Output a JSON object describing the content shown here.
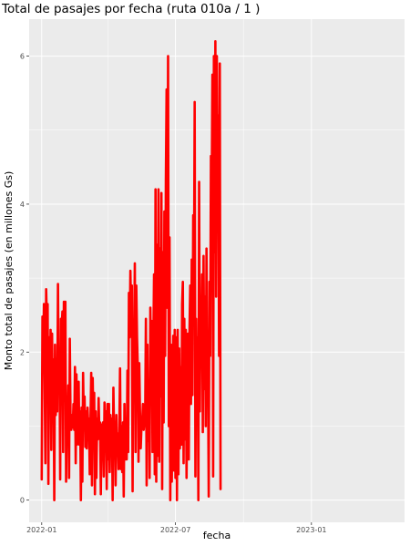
{
  "chart_data": {
    "type": "line",
    "title": "Total de pasajes por fecha (ruta 010a / 1 )",
    "xlabel": "fecha",
    "ylabel": "Monto total de pasajes (en millones Gs)",
    "x_range": [
      "2021-12-15",
      "2023-05-07"
    ],
    "ylim": [
      -0.3,
      6.5
    ],
    "x_ticks": [
      {
        "date": "2022-01-01",
        "label": "2022-01"
      },
      {
        "date": "2022-07-01",
        "label": "2022-07"
      },
      {
        "date": "2023-01-01",
        "label": "2023-01"
      }
    ],
    "y_ticks": [
      0,
      2,
      4,
      6
    ],
    "y_tick_labels": [
      "0",
      "2",
      "4",
      "6"
    ],
    "grid": true,
    "series": [
      {
        "color": "#ff0000",
        "points": [
          [
            "2022-01-01",
            0.28
          ],
          [
            "2022-01-02",
            2.48
          ],
          [
            "2022-01-03",
            1.9
          ],
          [
            "2022-01-04",
            2.65
          ],
          [
            "2022-01-06",
            0.5
          ],
          [
            "2022-01-07",
            2.85
          ],
          [
            "2022-01-08",
            2.4
          ],
          [
            "2022-01-09",
            2.65
          ],
          [
            "2022-01-10",
            0.22
          ],
          [
            "2022-01-11",
            2.2
          ],
          [
            "2022-01-12",
            1.2
          ],
          [
            "2022-01-13",
            2.3
          ],
          [
            "2022-01-14",
            0.68
          ],
          [
            "2022-01-15",
            2.25
          ],
          [
            "2022-01-16",
            1.3
          ],
          [
            "2022-01-17",
            1.9
          ],
          [
            "2022-01-18",
            0.0
          ],
          [
            "2022-01-19",
            2.1
          ],
          [
            "2022-01-20",
            1.15
          ],
          [
            "2022-01-21",
            1.9
          ],
          [
            "2022-01-22",
            1.2
          ],
          [
            "2022-01-23",
            2.92
          ],
          [
            "2022-01-24",
            1.5
          ],
          [
            "2022-01-25",
            2.05
          ],
          [
            "2022-01-26",
            0.28
          ],
          [
            "2022-01-27",
            2.45
          ],
          [
            "2022-01-28",
            2.3
          ],
          [
            "2022-01-29",
            2.55
          ],
          [
            "2022-01-30",
            0.65
          ],
          [
            "2022-01-31",
            2.68
          ],
          [
            "2022-02-01",
            2.2
          ],
          [
            "2022-02-02",
            2.68
          ],
          [
            "2022-02-03",
            0.25
          ],
          [
            "2022-02-04",
            1.35
          ],
          [
            "2022-02-05",
            1.0
          ],
          [
            "2022-02-06",
            1.55
          ],
          [
            "2022-02-07",
            0.3
          ],
          [
            "2022-02-08",
            2.18
          ],
          [
            "2022-02-09",
            1.1
          ],
          [
            "2022-02-10",
            0.95
          ],
          [
            "2022-02-11",
            1.15
          ],
          [
            "2022-02-12",
            0.98
          ],
          [
            "2022-02-13",
            1.3
          ],
          [
            "2022-02-14",
            0.95
          ],
          [
            "2022-02-15",
            1.8
          ],
          [
            "2022-02-16",
            0.5
          ],
          [
            "2022-02-17",
            1.7
          ],
          [
            "2022-02-18",
            0.75
          ],
          [
            "2022-02-19",
            1.05
          ],
          [
            "2022-02-20",
            1.6
          ],
          [
            "2022-02-21",
            0.75
          ],
          [
            "2022-02-22",
            1.2
          ],
          [
            "2022-02-23",
            0.0
          ],
          [
            "2022-02-24",
            1.25
          ],
          [
            "2022-02-25",
            0.25
          ],
          [
            "2022-02-26",
            1.72
          ],
          [
            "2022-02-27",
            1.0
          ],
          [
            "2022-02-28",
            1.4
          ],
          [
            "2022-03-01",
            0.72
          ],
          [
            "2022-03-02",
            1.2
          ],
          [
            "2022-03-03",
            0.7
          ],
          [
            "2022-03-04",
            1.25
          ],
          [
            "2022-03-05",
            1.0
          ],
          [
            "2022-03-06",
            1.1
          ],
          [
            "2022-03-07",
            0.35
          ],
          [
            "2022-03-08",
            1.05
          ],
          [
            "2022-03-09",
            1.72
          ],
          [
            "2022-03-10",
            0.2
          ],
          [
            "2022-03-11",
            1.65
          ],
          [
            "2022-03-12",
            1.0
          ],
          [
            "2022-03-13",
            1.45
          ],
          [
            "2022-03-14",
            0.08
          ],
          [
            "2022-03-15",
            1.2
          ],
          [
            "2022-03-16",
            0.3
          ],
          [
            "2022-03-17",
            1.1
          ],
          [
            "2022-03-18",
            0.82
          ],
          [
            "2022-03-19",
            1.38
          ],
          [
            "2022-03-20",
            0.9
          ],
          [
            "2022-03-21",
            1.05
          ],
          [
            "2022-03-22",
            0.08
          ],
          [
            "2022-03-23",
            1.02
          ],
          [
            "2022-03-24",
            0.85
          ],
          [
            "2022-03-25",
            1.05
          ],
          [
            "2022-03-26",
            0.32
          ],
          [
            "2022-03-27",
            1.32
          ],
          [
            "2022-03-28",
            0.9
          ],
          [
            "2022-03-29",
            1.2
          ],
          [
            "2022-03-30",
            0.15
          ],
          [
            "2022-03-31",
            1.3
          ],
          [
            "2022-04-01",
            0.55
          ],
          [
            "2022-04-02",
            1.3
          ],
          [
            "2022-04-03",
            0.38
          ],
          [
            "2022-04-04",
            1.15
          ],
          [
            "2022-04-05",
            0.68
          ],
          [
            "2022-04-06",
            1.1
          ],
          [
            "2022-04-07",
            0.0
          ],
          [
            "2022-04-08",
            1.52
          ],
          [
            "2022-04-09",
            0.85
          ],
          [
            "2022-04-10",
            1.05
          ],
          [
            "2022-04-11",
            0.2
          ],
          [
            "2022-04-12",
            1.15
          ],
          [
            "2022-04-13",
            0.6
          ],
          [
            "2022-04-14",
            0.9
          ],
          [
            "2022-04-15",
            0.42
          ],
          [
            "2022-04-16",
            0.95
          ],
          [
            "2022-04-17",
            1.78
          ],
          [
            "2022-04-18",
            0.42
          ],
          [
            "2022-04-19",
            1.0
          ],
          [
            "2022-04-20",
            0.38
          ],
          [
            "2022-04-21",
            1.05
          ],
          [
            "2022-04-22",
            0.05
          ],
          [
            "2022-04-23",
            1.3
          ],
          [
            "2022-04-24",
            0.55
          ],
          [
            "2022-04-25",
            1.0
          ],
          [
            "2022-04-26",
            0.55
          ],
          [
            "2022-04-27",
            1.75
          ],
          [
            "2022-04-28",
            0.65
          ],
          [
            "2022-04-29",
            2.8
          ],
          [
            "2022-04-30",
            2.2
          ],
          [
            "2022-05-01",
            3.1
          ],
          [
            "2022-05-02",
            2.5
          ],
          [
            "2022-05-03",
            2.9
          ],
          [
            "2022-05-04",
            0.12
          ],
          [
            "2022-05-05",
            2.4
          ],
          [
            "2022-05-06",
            2.0
          ],
          [
            "2022-05-07",
            3.2
          ],
          [
            "2022-05-08",
            0.65
          ],
          [
            "2022-05-09",
            2.9
          ],
          [
            "2022-05-10",
            2.2
          ],
          [
            "2022-05-11",
            1.8
          ],
          [
            "2022-05-12",
            0.52
          ],
          [
            "2022-05-13",
            1.85
          ],
          [
            "2022-05-14",
            1.2
          ],
          [
            "2022-05-15",
            0.7
          ],
          [
            "2022-05-16",
            1.0
          ],
          [
            "2022-05-17",
            1.05
          ],
          [
            "2022-05-18",
            1.3
          ],
          [
            "2022-05-19",
            0.95
          ],
          [
            "2022-05-20",
            1.05
          ],
          [
            "2022-05-21",
            1.1
          ],
          [
            "2022-05-22",
            2.45
          ],
          [
            "2022-05-23",
            0.2
          ],
          [
            "2022-05-24",
            2.1
          ],
          [
            "2022-05-25",
            0.8
          ],
          [
            "2022-05-26",
            1.6
          ],
          [
            "2022-05-27",
            0.3
          ],
          [
            "2022-05-28",
            2.6
          ],
          [
            "2022-05-29",
            1.8
          ],
          [
            "2022-05-30",
            2.42
          ],
          [
            "2022-05-31",
            0.65
          ],
          [
            "2022-06-01",
            2.0
          ],
          [
            "2022-06-02",
            3.05
          ],
          [
            "2022-06-03",
            0.35
          ],
          [
            "2022-06-04",
            4.2
          ],
          [
            "2022-06-05",
            0.25
          ],
          [
            "2022-06-06",
            3.45
          ],
          [
            "2022-06-07",
            0.6
          ],
          [
            "2022-06-08",
            4.2
          ],
          [
            "2022-06-09",
            0.52
          ],
          [
            "2022-06-10",
            3.4
          ],
          [
            "2022-06-11",
            1.4
          ],
          [
            "2022-06-12",
            4.15
          ],
          [
            "2022-06-13",
            0.15
          ],
          [
            "2022-06-14",
            3.35
          ],
          [
            "2022-06-15",
            1.05
          ],
          [
            "2022-06-16",
            3.9
          ],
          [
            "2022-06-17",
            1.95
          ],
          [
            "2022-06-18",
            4.3
          ],
          [
            "2022-06-19",
            5.55
          ],
          [
            "2022-06-20",
            2.6
          ],
          [
            "2022-06-21",
            6.0
          ],
          [
            "2022-06-22",
            1.0
          ],
          [
            "2022-06-23",
            3.55
          ],
          [
            "2022-06-24",
            0.0
          ],
          [
            "2022-06-25",
            2.1
          ],
          [
            "2022-06-26",
            0.25
          ],
          [
            "2022-06-27",
            1.2
          ],
          [
            "2022-06-28",
            2.22
          ],
          [
            "2022-06-29",
            0.4
          ],
          [
            "2022-06-30",
            2.3
          ],
          [
            "2022-07-01",
            0.3
          ],
          [
            "2022-07-02",
            2.2
          ],
          [
            "2022-07-03",
            0.0
          ],
          [
            "2022-07-04",
            2.3
          ],
          [
            "2022-07-05",
            0.35
          ],
          [
            "2022-07-06",
            2.05
          ],
          [
            "2022-07-07",
            0.7
          ],
          [
            "2022-07-08",
            1.8
          ],
          [
            "2022-07-09",
            0.75
          ],
          [
            "2022-07-10",
            2.65
          ],
          [
            "2022-07-11",
            2.95
          ],
          [
            "2022-07-12",
            0.5
          ],
          [
            "2022-07-13",
            2.45
          ],
          [
            "2022-07-14",
            0.82
          ],
          [
            "2022-07-15",
            2.3
          ],
          [
            "2022-07-16",
            0.3
          ],
          [
            "2022-07-17",
            1.65
          ],
          [
            "2022-07-18",
            2.25
          ],
          [
            "2022-07-19",
            0.55
          ],
          [
            "2022-07-20",
            2.3
          ],
          [
            "2022-07-21",
            2.9
          ],
          [
            "2022-07-22",
            1.3
          ],
          [
            "2022-07-23",
            3.25
          ],
          [
            "2022-07-24",
            1.42
          ],
          [
            "2022-07-25",
            3.85
          ],
          [
            "2022-07-26",
            2.9
          ],
          [
            "2022-07-27",
            5.38
          ],
          [
            "2022-07-28",
            0.32
          ],
          [
            "2022-07-29",
            2.45
          ],
          [
            "2022-07-30",
            1.25
          ],
          [
            "2022-07-31",
            2.2
          ],
          [
            "2022-08-01",
            0.0
          ],
          [
            "2022-08-02",
            4.3
          ],
          [
            "2022-08-03",
            1.2
          ],
          [
            "2022-08-04",
            2.75
          ],
          [
            "2022-08-05",
            2.05
          ],
          [
            "2022-08-06",
            3.05
          ],
          [
            "2022-08-07",
            0.92
          ],
          [
            "2022-08-08",
            3.3
          ],
          [
            "2022-08-09",
            1.5
          ],
          [
            "2022-08-10",
            2.75
          ],
          [
            "2022-08-11",
            1.0
          ],
          [
            "2022-08-12",
            3.4
          ],
          [
            "2022-08-13",
            1.4
          ],
          [
            "2022-08-14",
            1.85
          ],
          [
            "2022-08-15",
            0.05
          ],
          [
            "2022-08-16",
            2.95
          ],
          [
            "2022-08-17",
            1.95
          ],
          [
            "2022-08-18",
            4.65
          ],
          [
            "2022-08-19",
            4.05
          ],
          [
            "2022-08-20",
            5.75
          ],
          [
            "2022-08-21",
            0.32
          ],
          [
            "2022-08-22",
            6.0
          ],
          [
            "2022-08-23",
            3.35
          ],
          [
            "2022-08-24",
            6.2
          ],
          [
            "2022-08-25",
            2.75
          ],
          [
            "2022-08-26",
            6.0
          ],
          [
            "2022-08-27",
            4.2
          ],
          [
            "2022-08-28",
            5.2
          ],
          [
            "2022-08-29",
            1.95
          ],
          [
            "2022-08-30",
            5.9
          ],
          [
            "2022-08-31",
            0.15
          ]
        ]
      }
    ]
  }
}
